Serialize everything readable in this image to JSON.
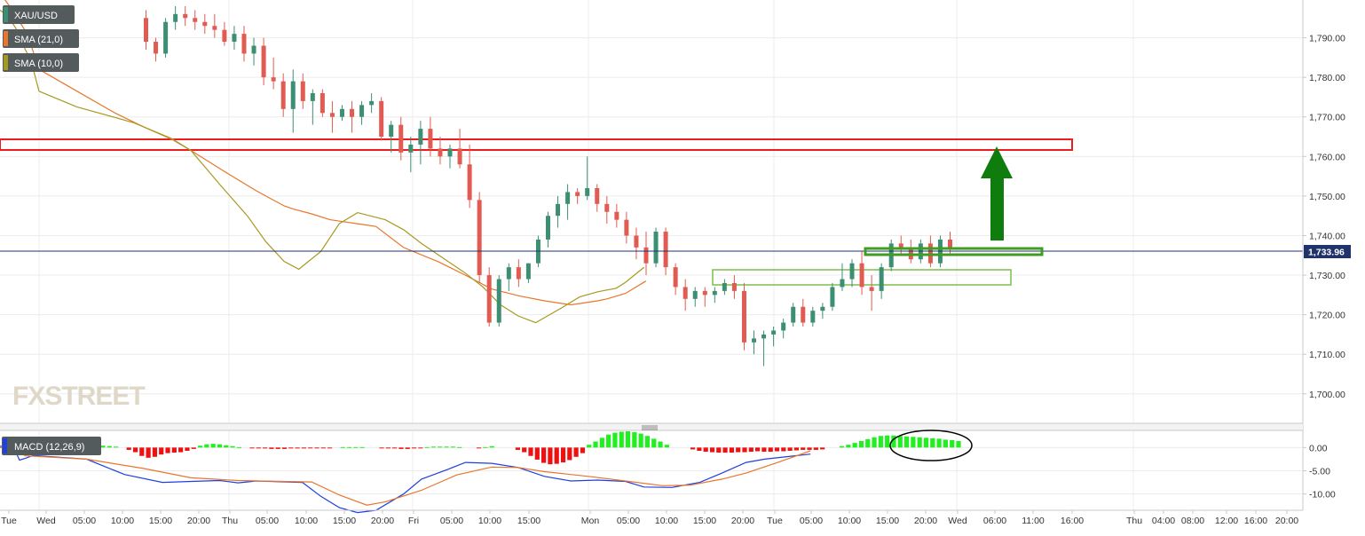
{
  "legend": [
    {
      "label": "XAU/USD",
      "swatch": "#3d8f73"
    },
    {
      "label": "SMA (21,0)",
      "swatch": "#e8762c"
    },
    {
      "label": "SMA (10,0)",
      "swatch": "#a59a20"
    }
  ],
  "macd_label": "MACD (12,26,9)",
  "watermark": "FXSTREET",
  "price_tag": "1,733.96",
  "colors": {
    "up": "#3d8f73",
    "down": "#e15b52",
    "sma21": "#e8762c",
    "sma10": "#a59a20",
    "macd_line": "#1f3fe0",
    "signal_line": "#e8762c",
    "hist_pos": "#22ee22",
    "hist_neg": "#ee1111",
    "zone_red": "#ee1c1c",
    "zone_green": "#3f9d22",
    "arrow": "#0e7d0e",
    "price_line": "#20336b"
  },
  "chart_data": {
    "type": "candlestick",
    "ylim": [
      1693,
      1800
    ],
    "y_ticks": [
      "1,700.00",
      "1,710.00",
      "1,720.00",
      "1,730.00",
      "1,740.00",
      "1,750.00",
      "1,760.00",
      "1,770.00",
      "1,780.00",
      "1,790.00"
    ],
    "x_ticks": [
      "Tue",
      "Wed",
      "05:00",
      "10:00",
      "15:00",
      "20:00",
      "Thu",
      "05:00",
      "10:00",
      "15:00",
      "20:00",
      "Fri",
      "05:00",
      "10:00",
      "15:00",
      "Mon",
      "05:00",
      "10:00",
      "15:00",
      "20:00",
      "Tue",
      "05:00",
      "10:00",
      "15:00",
      "20:00",
      "Wed",
      "06:00",
      "11:00",
      "16:00",
      "Thu",
      "04:00",
      "08:00",
      "12:00",
      "16:00",
      "20:00"
    ],
    "candles": [
      [
        1795,
        1797,
        1787,
        1789
      ],
      [
        1789,
        1790,
        1784,
        1786
      ],
      [
        1786,
        1795,
        1785,
        1794
      ],
      [
        1794,
        1798,
        1792,
        1796
      ],
      [
        1796,
        1798,
        1793,
        1795
      ],
      [
        1795,
        1797,
        1792,
        1794
      ],
      [
        1794,
        1796,
        1791,
        1793
      ],
      [
        1793,
        1796,
        1790,
        1792
      ],
      [
        1792,
        1794,
        1788,
        1789
      ],
      [
        1789,
        1793,
        1787,
        1791
      ],
      [
        1791,
        1793,
        1784,
        1786
      ],
      [
        1786,
        1790,
        1783,
        1788
      ],
      [
        1788,
        1790,
        1778,
        1780
      ],
      [
        1780,
        1785,
        1777,
        1779
      ],
      [
        1779,
        1781,
        1770,
        1772
      ],
      [
        1772,
        1782,
        1766,
        1779
      ],
      [
        1779,
        1781,
        1772,
        1774
      ],
      [
        1774,
        1777,
        1768,
        1776
      ],
      [
        1776,
        1777,
        1770,
        1771
      ],
      [
        1771,
        1774,
        1766,
        1770
      ],
      [
        1770,
        1773,
        1769,
        1772
      ],
      [
        1772,
        1774,
        1766,
        1770
      ],
      [
        1770,
        1774,
        1768,
        1773
      ],
      [
        1773,
        1776,
        1771,
        1774
      ],
      [
        1774,
        1775,
        1764,
        1765
      ],
      [
        1765,
        1769,
        1761,
        1768
      ],
      [
        1768,
        1770,
        1759,
        1761
      ],
      [
        1761,
        1765,
        1756,
        1763
      ],
      [
        1763,
        1769,
        1758,
        1767
      ],
      [
        1767,
        1770,
        1760,
        1762
      ],
      [
        1762,
        1765,
        1758,
        1760
      ],
      [
        1760,
        1763,
        1757,
        1762
      ],
      [
        1762,
        1767,
        1757,
        1758
      ],
      [
        1758,
        1763,
        1747,
        1749
      ],
      [
        1749,
        1751,
        1728,
        1730
      ],
      [
        1730,
        1732,
        1717,
        1718
      ],
      [
        1718,
        1730,
        1717,
        1729
      ],
      [
        1729,
        1733,
        1726,
        1732
      ],
      [
        1732,
        1734,
        1727,
        1729
      ],
      [
        1729,
        1733,
        1728,
        1733
      ],
      [
        1733,
        1740,
        1732,
        1739
      ],
      [
        1739,
        1746,
        1737,
        1745
      ],
      [
        1745,
        1750,
        1742,
        1748
      ],
      [
        1748,
        1753,
        1744,
        1751
      ],
      [
        1751,
        1752,
        1748,
        1750
      ],
      [
        1750,
        1760,
        1749,
        1752
      ],
      [
        1752,
        1753,
        1746,
        1748
      ],
      [
        1748,
        1750,
        1743,
        1746
      ],
      [
        1746,
        1748,
        1742,
        1744
      ],
      [
        1744,
        1746,
        1738,
        1740
      ],
      [
        1740,
        1742,
        1734,
        1737
      ],
      [
        1737,
        1741,
        1730,
        1733
      ],
      [
        1733,
        1742,
        1732,
        1741
      ],
      [
        1741,
        1742,
        1730,
        1732
      ],
      [
        1732,
        1733,
        1725,
        1727
      ],
      [
        1727,
        1729,
        1721,
        1724
      ],
      [
        1724,
        1727,
        1722,
        1726
      ],
      [
        1726,
        1727,
        1722,
        1725
      ],
      [
        1725,
        1727,
        1723,
        1726
      ],
      [
        1726,
        1729,
        1725,
        1728
      ],
      [
        1728,
        1730,
        1724,
        1726
      ],
      [
        1726,
        1728,
        1711,
        1713
      ],
      [
        1713,
        1716,
        1710,
        1714
      ],
      [
        1714,
        1716,
        1707,
        1715
      ],
      [
        1715,
        1717,
        1712,
        1716
      ],
      [
        1716,
        1719,
        1714,
        1718
      ],
      [
        1718,
        1723,
        1717,
        1722
      ],
      [
        1722,
        1724,
        1717,
        1718
      ],
      [
        1718,
        1722,
        1717,
        1721
      ],
      [
        1721,
        1723,
        1719,
        1722
      ],
      [
        1722,
        1728,
        1721,
        1727
      ],
      [
        1727,
        1733,
        1726,
        1729
      ],
      [
        1729,
        1734,
        1727,
        1733
      ],
      [
        1733,
        1736,
        1725,
        1727
      ],
      [
        1727,
        1730,
        1721,
        1726
      ],
      [
        1726,
        1733,
        1724,
        1732
      ],
      [
        1732,
        1739,
        1731,
        1738
      ],
      [
        1738,
        1740,
        1735,
        1737
      ],
      [
        1737,
        1739,
        1733,
        1734
      ],
      [
        1734,
        1739,
        1733,
        1738
      ],
      [
        1738,
        1740,
        1732,
        1733
      ],
      [
        1733,
        1740,
        1732,
        1739
      ],
      [
        1739,
        1741,
        1735,
        1737
      ]
    ],
    "sma21": [
      [
        0.0,
        1801
      ],
      [
        0.15,
        1799.3
      ],
      [
        0.35,
        1796.5
      ],
      [
        0.55,
        1793.3
      ],
      [
        0.7,
        1791
      ],
      [
        0.8,
        1788
      ],
      [
        1.0,
        1782
      ],
      [
        1.2,
        1776.5
      ],
      [
        1.4,
        1771
      ],
      [
        1.55,
        1767.5
      ],
      [
        1.7,
        1764.3
      ],
      [
        1.8,
        1761.5
      ],
      [
        2.0,
        1755.5
      ],
      [
        2.15,
        1751.3
      ],
      [
        2.3,
        1747.5
      ],
      [
        2.35,
        1746.7
      ],
      [
        2.45,
        1745.5
      ],
      [
        2.55,
        1744
      ],
      [
        2.7,
        1743
      ],
      [
        2.8,
        1742.3
      ],
      [
        2.95,
        1737
      ],
      [
        3.15,
        1733.3
      ],
      [
        3.3,
        1730
      ],
      [
        3.45,
        1726.5
      ],
      [
        3.6,
        1724.8
      ],
      [
        3.75,
        1723.5
      ],
      [
        3.9,
        1722.5
      ],
      [
        4.05,
        1723.5
      ],
      [
        4.1,
        1724
      ],
      [
        4.2,
        1725.4
      ],
      [
        4.31,
        1728.5
      ]
    ],
    "sma10": [
      [
        0.0,
        1797
      ],
      [
        0.2,
        1795.5
      ],
      [
        0.4,
        1792.5
      ],
      [
        0.55,
        1789
      ],
      [
        0.8,
        1784
      ],
      [
        1.0,
        1776.5
      ],
      [
        1.2,
        1772.5
      ],
      [
        1.3,
        1771.2
      ],
      [
        1.5,
        1768.5
      ],
      [
        1.7,
        1764.5
      ],
      [
        1.8,
        1761.5
      ],
      [
        1.95,
        1753
      ],
      [
        2.1,
        1745
      ],
      [
        2.2,
        1738.5
      ],
      [
        2.3,
        1733.5
      ],
      [
        2.38,
        1731.5
      ],
      [
        2.5,
        1736
      ],
      [
        2.6,
        1743
      ],
      [
        2.7,
        1745.8
      ],
      [
        2.85,
        1744
      ],
      [
        2.95,
        1741.5
      ],
      [
        3.05,
        1738
      ],
      [
        3.15,
        1735
      ],
      [
        3.3,
        1730.5
      ],
      [
        3.4,
        1727
      ],
      [
        3.5,
        1722.5
      ],
      [
        3.6,
        1719.7
      ],
      [
        3.7,
        1718
      ],
      [
        3.85,
        1721.8
      ],
      [
        3.95,
        1724.5
      ],
      [
        4.05,
        1725.8
      ],
      [
        4.15,
        1726.7
      ],
      [
        4.2,
        1728.2
      ],
      [
        4.3,
        1732
      ]
    ],
    "macd_ylim": [
      -13.5,
      3.5
    ],
    "macd_ticks": [
      "0.00",
      "-5.00",
      "-10.00"
    ],
    "macd_hist": [
      0.4,
      0.3,
      0.2,
      0.0,
      -0.5,
      -1.0,
      -1.8,
      -2.2,
      -2.0,
      -1.5,
      -1.2,
      -1.1,
      -1.0,
      -0.7,
      -0.3,
      0.4,
      0.7,
      0.8,
      0.7,
      0.5,
      0.3,
      0.1,
      0.0,
      -0.1,
      -0.2,
      -0.2,
      -0.3,
      -0.3,
      -0.3,
      -0.2,
      -0.2,
      -0.2,
      -0.1,
      -0.1,
      -0.1,
      -0.1,
      0.0,
      0.1,
      0.1,
      0.1,
      0.1,
      0.0,
      0.0,
      -0.1,
      -0.2,
      -0.2,
      -0.3,
      -0.3,
      -0.2,
      -0.1,
      0.1,
      0.2,
      0.2,
      0.2,
      0.2,
      0.1,
      0.0,
      0.0,
      -0.1,
      0.1,
      0.3,
      0.0,
      0.0,
      0.0,
      -0.5,
      -1.0,
      -1.8,
      -2.6,
      -3.3,
      -3.6,
      -3.5,
      -3.2,
      -2.7,
      -2.0,
      -1.2,
      0.6,
      1.3,
      2.1,
      2.8,
      3.2,
      3.4,
      3.5,
      3.3,
      3.0,
      2.5,
      1.9,
      1.3,
      0.6,
      0.0,
      0.0,
      0.0,
      -0.4,
      -0.7,
      -0.9,
      -1.0,
      -1.1,
      -1.1,
      -1.1,
      -1.0,
      -1.0,
      -0.9,
      -0.8,
      -0.9,
      -0.9,
      -0.8,
      -0.8,
      -0.7,
      -0.6,
      -0.5,
      -0.5,
      -0.5,
      -0.4,
      0.0,
      0.0,
      0.3,
      0.6,
      1.0,
      1.4,
      1.8,
      2.2,
      2.5,
      2.6,
      2.6,
      2.5,
      2.4,
      2.3,
      2.2,
      2.1,
      2.0,
      1.9,
      1.7,
      1.6,
      1.4
    ],
    "macd_line": [
      [
        0.0,
        0.3
      ],
      [
        0.35,
        0.0
      ],
      [
        0.5,
        -2.7
      ],
      [
        0.65,
        -2.3
      ],
      [
        0.85,
        -1.7
      ],
      [
        1.0,
        -1.8
      ],
      [
        1.25,
        -2.5
      ],
      [
        1.45,
        -5.8
      ],
      [
        1.65,
        -7.5
      ],
      [
        1.8,
        -7.3
      ],
      [
        1.95,
        -7.1
      ],
      [
        2.05,
        -7.6
      ],
      [
        2.15,
        -7.2
      ],
      [
        2.4,
        -7.5
      ],
      [
        2.5,
        -10.5
      ],
      [
        2.6,
        -12.9
      ],
      [
        2.7,
        -14.0
      ],
      [
        2.8,
        -13.5
      ],
      [
        2.95,
        -10.0
      ],
      [
        3.05,
        -6.8
      ],
      [
        3.2,
        -4.7
      ],
      [
        3.3,
        -3.2
      ],
      [
        3.45,
        -3.4
      ],
      [
        3.6,
        -4.3
      ],
      [
        3.75,
        -6.2
      ],
      [
        3.9,
        -7.2
      ],
      [
        4.05,
        -7.0
      ],
      [
        4.2,
        -7.3
      ],
      [
        4.3,
        -8.5
      ],
      [
        4.45,
        -8.6
      ],
      [
        4.6,
        -7.5
      ],
      [
        4.72,
        -5.5
      ],
      [
        4.85,
        -3.2
      ],
      [
        4.95,
        -2.5
      ],
      [
        5.2,
        -1.4
      ]
    ],
    "signal_line": [
      [
        0.0,
        0.0
      ],
      [
        0.35,
        -0.3
      ],
      [
        0.65,
        -1.8
      ],
      [
        0.95,
        -1.9
      ],
      [
        1.25,
        -2.5
      ],
      [
        1.55,
        -4.5
      ],
      [
        1.8,
        -6.5
      ],
      [
        2.05,
        -7.1
      ],
      [
        2.45,
        -7.4
      ],
      [
        2.6,
        -10.2
      ],
      [
        2.75,
        -12.4
      ],
      [
        2.85,
        -11.7
      ],
      [
        3.05,
        -9.2
      ],
      [
        3.25,
        -5.9
      ],
      [
        3.45,
        -4.2
      ],
      [
        3.6,
        -4.3
      ],
      [
        3.75,
        -5.2
      ],
      [
        4.0,
        -6.2
      ],
      [
        4.2,
        -7.2
      ],
      [
        4.4,
        -8.2
      ],
      [
        4.55,
        -8.1
      ],
      [
        4.72,
        -6.8
      ],
      [
        4.85,
        -5.5
      ],
      [
        5.0,
        -3.5
      ],
      [
        5.2,
        -0.7
      ]
    ],
    "annotations": [
      {
        "type": "resistance-zone",
        "color": "red",
        "range": [
          1759.2,
          1762
        ]
      },
      {
        "type": "support-zone-upper",
        "color": "green",
        "range": [
          1732.2,
          1733.9
        ]
      },
      {
        "type": "support-zone-lower",
        "color": "green",
        "range": [
          1724.9,
          1729.0
        ]
      },
      {
        "type": "target-arrow",
        "color": "green",
        "from": 1736.5,
        "to": 1760
      }
    ]
  }
}
